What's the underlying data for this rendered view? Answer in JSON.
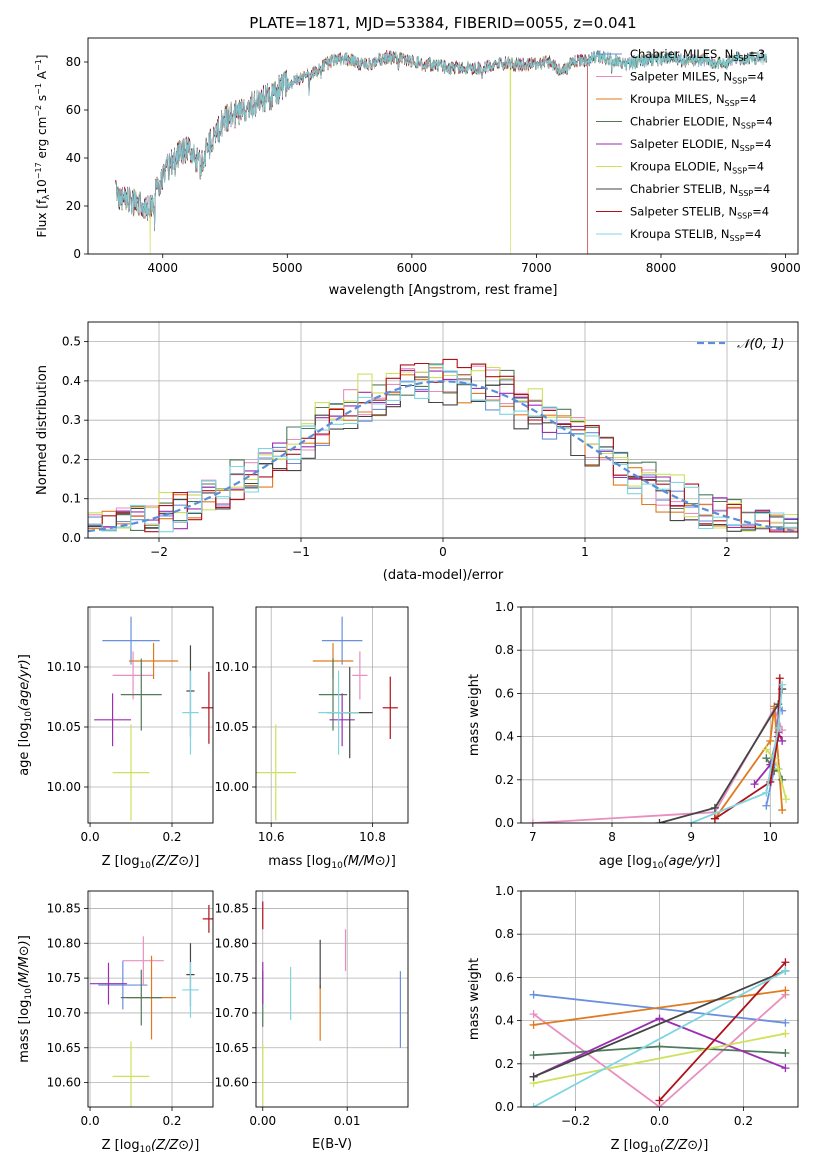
{
  "figure_title": "PLATE=1871, MJD=53384, FIBERID=0055, z=0.041",
  "colors": {
    "Chabrier MILES": "#6a8fdc",
    "Salpeter MILES": "#e88fc0",
    "Kroupa MILES": "#e07a1f",
    "Chabrier ELODIE": "#4f7a5c",
    "Salpeter ELODIE": "#9a2fb0",
    "Kroupa ELODIE": "#cfe05a",
    "Chabrier STELIB": "#444444",
    "Salpeter STELIB": "#b0121a",
    "Kroupa STELIB": "#7fd6e0"
  },
  "chart_data": [
    {
      "id": "spectrum",
      "type": "line",
      "xlabel": "wavelength [Angstrom, rest frame]",
      "ylabel": "Flux [f_λ 10^-17 erg cm^-2 s^-1 A^-1]",
      "xlim": [
        3400,
        9100
      ],
      "ylim": [
        0,
        90
      ],
      "xticks": [
        4000,
        5000,
        6000,
        7000,
        8000,
        9000
      ],
      "yticks": [
        0,
        20,
        40,
        60,
        80
      ],
      "legend_position": "top-right",
      "series": [
        {
          "name": "Chabrier MILES, N_SSP=3",
          "model": "Chabrier MILES"
        },
        {
          "name": "Salpeter MILES, N_SSP=4",
          "model": "Salpeter MILES"
        },
        {
          "name": "Kroupa MILES, N_SSP=4",
          "model": "Kroupa MILES"
        },
        {
          "name": "Chabrier ELODIE, N_SSP=4",
          "model": "Chabrier ELODIE"
        },
        {
          "name": "Salpeter ELODIE, N_SSP=4",
          "model": "Salpeter ELODIE"
        },
        {
          "name": "Kroupa ELODIE, N_SSP=4",
          "model": "Kroupa ELODIE"
        },
        {
          "name": "Chabrier STELIB, N_SSP=4",
          "model": "Chabrier STELIB"
        },
        {
          "name": "Salpeter STELIB, N_SSP=4",
          "model": "Salpeter STELIB"
        },
        {
          "name": "Kroupa STELIB, N_SSP=4",
          "model": "Kroupa STELIB"
        }
      ],
      "continuum": {
        "x": [
          3620,
          3700,
          3800,
          3900,
          4000,
          4100,
          4200,
          4300,
          4400,
          4500,
          4600,
          4700,
          4800,
          4900,
          5000,
          5100,
          5200,
          5300,
          5400,
          5500,
          5600,
          5700,
          5800,
          5900,
          6000,
          6100,
          6200,
          6300,
          6400,
          6500,
          6600,
          6700,
          6800,
          6900,
          7000,
          7100,
          7200,
          7300,
          7400,
          7500,
          7600,
          7700,
          7800,
          7900,
          8000,
          8100,
          8200,
          8300,
          8400,
          8500,
          8600,
          8700,
          8800,
          8850
        ],
        "y": [
          25,
          23,
          21,
          19,
          33,
          40,
          44,
          38,
          48,
          56,
          59,
          62,
          64,
          67,
          71,
          73,
          75,
          79,
          81,
          81,
          79,
          80,
          82,
          82,
          80,
          79,
          79,
          77,
          78,
          77,
          78,
          80,
          79,
          79,
          79,
          80,
          76,
          80,
          81,
          82,
          81,
          79,
          80,
          81,
          81,
          82,
          80,
          81,
          80,
          79,
          82,
          81,
          82,
          81
        ]
      },
      "dropouts": [
        {
          "model": "Kroupa ELODIE",
          "x": 3900
        },
        {
          "model": "Kroupa ELODIE",
          "x": 6790
        },
        {
          "model": "Salpeter STELIB",
          "x": 7410
        }
      ]
    },
    {
      "id": "residuals",
      "type": "histogram",
      "xlabel": "(data-model)/error",
      "ylabel": "Normed distribution",
      "xlim": [
        -2.5,
        2.5
      ],
      "ylim": [
        0,
        0.55
      ],
      "xticks": [
        -2,
        -1,
        0,
        1,
        2
      ],
      "yticks": [
        0,
        0.1,
        0.2,
        0.3,
        0.4,
        0.5
      ],
      "legend_position": "top-right",
      "reference_curve": {
        "name": "𝒩(0, 1)",
        "mean": 0,
        "sigma": 1
      },
      "bin_width": 0.1,
      "series_amplitude_offsets": [
        {
          "model": "Chabrier MILES",
          "offset": 0.0
        },
        {
          "model": "Salpeter MILES",
          "offset": 0.01
        },
        {
          "model": "Kroupa MILES",
          "offset": -0.01
        },
        {
          "model": "Chabrier ELODIE",
          "offset": 0.02
        },
        {
          "model": "Salpeter ELODIE",
          "offset": 0.0
        },
        {
          "model": "Kroupa ELODIE",
          "offset": 0.03
        },
        {
          "model": "Chabrier STELIB",
          "offset": -0.02
        },
        {
          "model": "Salpeter STELIB",
          "offset": 0.01
        },
        {
          "model": "Kroupa STELIB",
          "offset": 0.0
        }
      ]
    },
    {
      "id": "age-vs-Z",
      "type": "errorbar",
      "xlabel": "Z [log10(Z/Z⊙)]",
      "ylabel": "age  [log10(age/yr)]",
      "xlim": [
        -0.005,
        0.3
      ],
      "ylim": [
        9.97,
        10.15
      ],
      "xticks": [
        0.0,
        0.2
      ],
      "yticks": [
        10.0,
        10.05,
        10.1
      ],
      "points": [
        {
          "model": "Chabrier MILES",
          "x": 0.1,
          "y": 10.122,
          "xerr": 0.07,
          "yerr": 0.02
        },
        {
          "model": "Salpeter MILES",
          "x": 0.105,
          "y": 10.093,
          "xerr": 0.05,
          "yerr": 0.02
        },
        {
          "model": "Kroupa MILES",
          "x": 0.155,
          "y": 10.105,
          "xerr": 0.06,
          "yerr": 0.015
        },
        {
          "model": "Chabrier ELODIE",
          "x": 0.125,
          "y": 10.077,
          "xerr": 0.05,
          "yerr": 0.03
        },
        {
          "model": "Salpeter ELODIE",
          "x": 0.055,
          "y": 10.056,
          "xerr": 0.045,
          "yerr": 0.022
        },
        {
          "model": "Kroupa ELODIE",
          "x": 0.1,
          "y": 10.012,
          "xerr": 0.045,
          "yerr": 0.04
        },
        {
          "model": "Chabrier STELIB",
          "x": 0.245,
          "y": 10.08,
          "xerr": 0.01,
          "yerr": 0.038
        },
        {
          "model": "Salpeter STELIB",
          "x": 0.29,
          "y": 10.066,
          "xerr": 0.018,
          "yerr": 0.03
        },
        {
          "model": "Kroupa STELIB",
          "x": 0.245,
          "y": 10.062,
          "xerr": 0.02,
          "yerr": 0.035
        }
      ]
    },
    {
      "id": "age-vs-mass",
      "type": "errorbar",
      "xlabel": "mass [log10(M/M⊙)]",
      "ylabel": "",
      "xlim": [
        10.57,
        10.87
      ],
      "ylim": [
        9.97,
        10.15
      ],
      "xticks": [
        10.6,
        10.8
      ],
      "yticks": [
        10.0,
        10.05,
        10.1
      ],
      "points": [
        {
          "model": "Chabrier MILES",
          "x": 10.74,
          "y": 10.122,
          "xerr": 0.04,
          "yerr": 0.02
        },
        {
          "model": "Salpeter MILES",
          "x": 10.775,
          "y": 10.093,
          "xerr": 0.015,
          "yerr": 0.02
        },
        {
          "model": "Kroupa MILES",
          "x": 10.722,
          "y": 10.105,
          "xerr": 0.04,
          "yerr": 0.015
        },
        {
          "model": "Chabrier ELODIE",
          "x": 10.722,
          "y": 10.077,
          "xerr": 0.028,
          "yerr": 0.03
        },
        {
          "model": "Salpeter ELODIE",
          "x": 10.74,
          "y": 10.056,
          "xerr": 0.025,
          "yerr": 0.022
        },
        {
          "model": "Kroupa ELODIE",
          "x": 10.609,
          "y": 10.012,
          "xerr": 0.04,
          "yerr": 0.04
        },
        {
          "model": "Chabrier STELIB",
          "x": 10.755,
          "y": 10.062,
          "xerr": 0.045,
          "yerr": 0.038
        },
        {
          "model": "Salpeter STELIB",
          "x": 10.835,
          "y": 10.066,
          "xerr": 0.015,
          "yerr": 0.026
        },
        {
          "model": "Kroupa STELIB",
          "x": 10.733,
          "y": 10.062,
          "xerr": 0.04,
          "yerr": 0.035
        }
      ]
    },
    {
      "id": "mass-weight-vs-age",
      "type": "line",
      "xlabel": "age  [log10(age/yr)]",
      "ylabel": "mass weight",
      "xlim": [
        6.85,
        10.35
      ],
      "ylim": [
        0,
        1.0
      ],
      "xticks": [
        7,
        8,
        9,
        10
      ],
      "yticks": [
        0.0,
        0.2,
        0.4,
        0.6,
        0.8,
        1.0
      ],
      "series": [
        {
          "model": "Chabrier MILES",
          "x": [
            9.95,
            10.05,
            10.1,
            10.15
          ],
          "y": [
            0.08,
            0.25,
            0.53,
            0.52
          ]
        },
        {
          "model": "Salpeter MILES",
          "x": [
            7.0,
            9.3,
            10.05,
            10.15
          ],
          "y": [
            0.0,
            0.05,
            0.53,
            0.43
          ]
        },
        {
          "model": "Kroupa MILES",
          "x": [
            9.3,
            10.0,
            10.05,
            10.15
          ],
          "y": [
            0.02,
            0.38,
            0.54,
            0.06
          ]
        },
        {
          "model": "Chabrier ELODIE",
          "x": [
            9.95,
            10.05,
            10.1,
            10.15
          ],
          "y": [
            0.3,
            0.24,
            0.25,
            0.2
          ]
        },
        {
          "model": "Salpeter ELODIE",
          "x": [
            9.8,
            10.0,
            10.1,
            10.15
          ],
          "y": [
            0.18,
            0.27,
            0.42,
            0.38
          ]
        },
        {
          "model": "Kroupa ELODIE",
          "x": [
            9.95,
            10.05,
            10.1,
            10.2
          ],
          "y": [
            0.34,
            0.3,
            0.25,
            0.11
          ]
        },
        {
          "model": "Chabrier STELIB",
          "x": [
            8.6,
            9.3,
            10.1,
            10.15
          ],
          "y": [
            0.0,
            0.07,
            0.55,
            0.62
          ]
        },
        {
          "model": "Salpeter STELIB",
          "x": [
            9.3,
            10.0,
            10.1,
            10.12
          ],
          "y": [
            0.02,
            0.19,
            0.4,
            0.67
          ]
        },
        {
          "model": "Kroupa STELIB",
          "x": [
            9.0,
            9.95,
            10.1,
            10.15
          ],
          "y": [
            0.0,
            0.14,
            0.44,
            0.64
          ]
        }
      ]
    },
    {
      "id": "mass-vs-Z",
      "type": "errorbar",
      "xlabel": "Z [log10(Z/Z⊙)]",
      "ylabel": "mass [log10(M/M⊙)]",
      "xlim": [
        -0.005,
        0.3
      ],
      "ylim": [
        10.565,
        10.875
      ],
      "xticks": [
        0.0,
        0.2
      ],
      "yticks": [
        10.6,
        10.65,
        10.7,
        10.75,
        10.8,
        10.85
      ],
      "points": [
        {
          "model": "Chabrier MILES",
          "x": 0.08,
          "y": 10.74,
          "xerr": 0.06,
          "yerr": 0.035
        },
        {
          "model": "Salpeter MILES",
          "x": 0.13,
          "y": 10.775,
          "xerr": 0.05,
          "yerr": 0.035
        },
        {
          "model": "Kroupa MILES",
          "x": 0.15,
          "y": 10.722,
          "xerr": 0.06,
          "yerr": 0.06
        },
        {
          "model": "Chabrier ELODIE",
          "x": 0.125,
          "y": 10.722,
          "xerr": 0.05,
          "yerr": 0.04
        },
        {
          "model": "Salpeter ELODIE",
          "x": 0.045,
          "y": 10.742,
          "xerr": 0.045,
          "yerr": 0.03
        },
        {
          "model": "Kroupa ELODIE",
          "x": 0.1,
          "y": 10.609,
          "xerr": 0.045,
          "yerr": 0.05
        },
        {
          "model": "Chabrier STELIB",
          "x": 0.245,
          "y": 10.755,
          "xerr": 0.01,
          "yerr": 0.045
        },
        {
          "model": "Salpeter STELIB",
          "x": 0.29,
          "y": 10.835,
          "xerr": 0.015,
          "yerr": 0.02
        },
        {
          "model": "Kroupa STELIB",
          "x": 0.245,
          "y": 10.733,
          "xerr": 0.02,
          "yerr": 0.04
        }
      ]
    },
    {
      "id": "mass-vs-ebv",
      "type": "errorbar",
      "xlabel": "E(B-V)",
      "ylabel": "",
      "xlim": [
        -0.0008,
        0.0172
      ],
      "ylim": [
        10.565,
        10.875
      ],
      "xticks": [
        0.0,
        0.01
      ],
      "xticklabels": [
        "0.00",
        "0.01"
      ],
      "yticks": [
        10.6,
        10.65,
        10.7,
        10.75,
        10.8,
        10.85
      ],
      "points": [
        {
          "model": "Chabrier MILES",
          "x": 0.0163,
          "y": 10.705,
          "xerr": 0.0,
          "yerr": 0.055
        },
        {
          "model": "Salpeter MILES",
          "x": 0.0098,
          "y": 10.79,
          "xerr": 0.0,
          "yerr": 0.03
        },
        {
          "model": "Kroupa MILES",
          "x": 0.0068,
          "y": 10.7,
          "xerr": 0.0,
          "yerr": 0.04
        },
        {
          "model": "Chabrier ELODIE",
          "x": 0.0,
          "y": 10.72,
          "xerr": 0.0,
          "yerr": 0.04
        },
        {
          "model": "Salpeter ELODIE",
          "x": 0.0,
          "y": 10.743,
          "xerr": 0.0,
          "yerr": 0.03
        },
        {
          "model": "Kroupa ELODIE",
          "x": 0.0,
          "y": 10.61,
          "xerr": 0.0,
          "yerr": 0.045
        },
        {
          "model": "Chabrier STELIB",
          "x": 0.0068,
          "y": 10.77,
          "xerr": 0.0,
          "yerr": 0.035
        },
        {
          "model": "Salpeter STELIB",
          "x": 0.0,
          "y": 10.84,
          "xerr": 0.0,
          "yerr": 0.02
        },
        {
          "model": "Kroupa STELIB",
          "x": 0.0033,
          "y": 10.728,
          "xerr": 0.0,
          "yerr": 0.038
        }
      ]
    },
    {
      "id": "mass-weight-vs-Z",
      "type": "line",
      "xlabel": "Z [log10(Z/Z⊙)]",
      "ylabel": "mass weight",
      "xlim": [
        -0.33,
        0.33
      ],
      "ylim": [
        0,
        1.0
      ],
      "xticks": [
        -0.2,
        0.0,
        0.2
      ],
      "yticks": [
        0.0,
        0.2,
        0.4,
        0.6,
        0.8,
        1.0
      ],
      "series": [
        {
          "model": "Chabrier MILES",
          "x": [
            -0.3,
            0.3
          ],
          "y": [
            0.52,
            0.39
          ]
        },
        {
          "model": "Salpeter MILES",
          "x": [
            -0.3,
            0.0,
            0.3
          ],
          "y": [
            0.43,
            0.0,
            0.52
          ]
        },
        {
          "model": "Kroupa MILES",
          "x": [
            -0.3,
            0.3
          ],
          "y": [
            0.38,
            0.54
          ]
        },
        {
          "model": "Chabrier ELODIE",
          "x": [
            -0.3,
            0.0,
            0.3
          ],
          "y": [
            0.24,
            0.28,
            0.25
          ]
        },
        {
          "model": "Salpeter ELODIE",
          "x": [
            -0.3,
            0.0,
            0.3
          ],
          "y": [
            0.14,
            0.41,
            0.18
          ]
        },
        {
          "model": "Kroupa ELODIE",
          "x": [
            -0.3,
            0.3
          ],
          "y": [
            0.11,
            0.34
          ]
        },
        {
          "model": "Chabrier STELIB",
          "x": [
            -0.3,
            0.3
          ],
          "y": [
            0.14,
            0.63
          ]
        },
        {
          "model": "Salpeter STELIB",
          "x": [
            0.0,
            0.3
          ],
          "y": [
            0.03,
            0.67
          ]
        },
        {
          "model": "Kroupa STELIB",
          "x": [
            -0.3,
            0.3
          ],
          "y": [
            0.0,
            0.63
          ]
        }
      ]
    }
  ]
}
